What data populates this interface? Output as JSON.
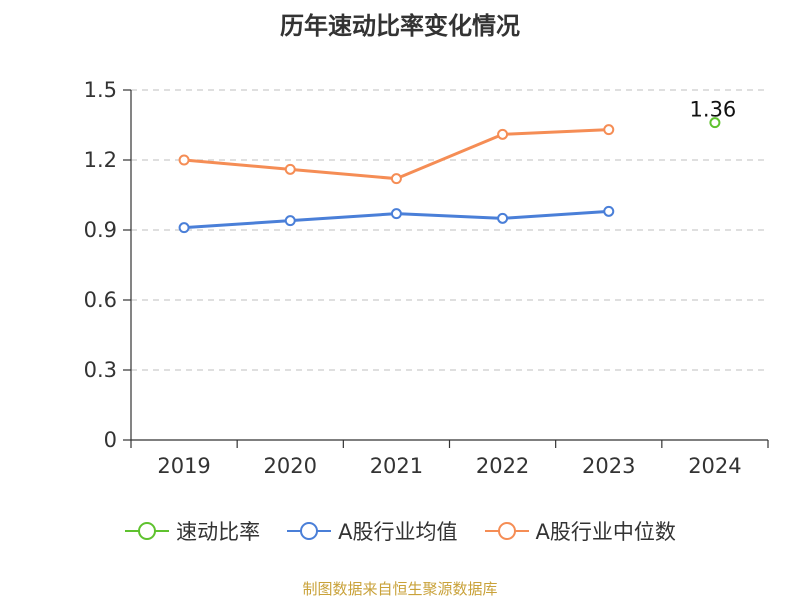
{
  "chart_data": {
    "type": "line",
    "title": "历年速动比率变化情况",
    "categories": [
      "2019",
      "2020",
      "2021",
      "2022",
      "2023",
      "2024"
    ],
    "ylim": [
      0,
      1.5
    ],
    "yticks": [
      "0",
      "0.3",
      "0.6",
      "0.9",
      "1.2",
      "1.5"
    ],
    "grid": true,
    "legend_position": "bottom",
    "series": [
      {
        "name": "速动比率",
        "color": "#5fc22f",
        "values": [
          null,
          null,
          null,
          null,
          null,
          1.36
        ],
        "labels": [
          null,
          null,
          null,
          null,
          null,
          "1.36"
        ]
      },
      {
        "name": "A股行业均值",
        "color": "#4a7fd8",
        "values": [
          0.91,
          0.94,
          0.97,
          0.95,
          0.98,
          null
        ]
      },
      {
        "name": "A股行业中位数",
        "color": "#f58d55",
        "values": [
          1.2,
          1.16,
          1.12,
          1.31,
          1.33,
          null
        ]
      }
    ],
    "source": "制图数据来自恒生聚源数据库"
  }
}
